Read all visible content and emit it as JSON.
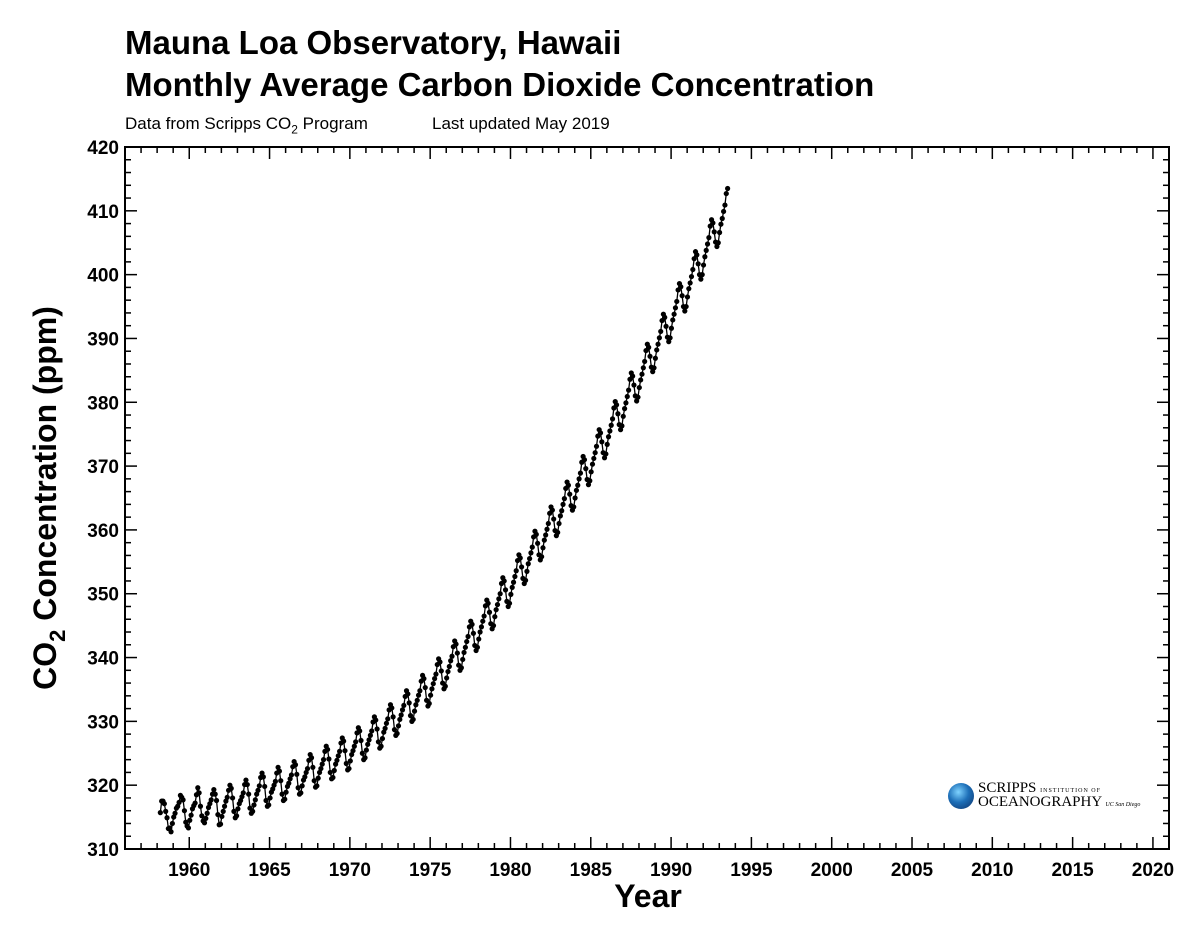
{
  "header": {
    "title_line1": "Mauna Loa Observatory, Hawaii",
    "title_line2": "Monthly Average Carbon Dioxide Concentration",
    "source_prefix": "Data from Scripps CO",
    "source_sub": "2",
    "source_suffix": " Program",
    "updated": "Last updated May 2019"
  },
  "logo": {
    "line1_main": "SCRIPPS",
    "line1_small": "INSTITUTION OF",
    "line2_main": "OCEANOGRAPHY",
    "line2_small": "UC San Diego"
  },
  "chart_data": {
    "type": "line",
    "xlabel": "Year",
    "ylabel": "CO2 Concentration (ppm)",
    "ylabel_main": "CO",
    "ylabel_sub": "2",
    "ylabel_rest": " Concentration (ppm)",
    "xlim": [
      1956,
      2021
    ],
    "ylim": [
      310,
      420
    ],
    "xticks": [
      1960,
      1965,
      1970,
      1975,
      1980,
      1985,
      1990,
      1995,
      2000,
      2005,
      2010,
      2015,
      2020
    ],
    "yticks": [
      310,
      320,
      330,
      340,
      350,
      360,
      370,
      380,
      390,
      400,
      410,
      420
    ],
    "grid": false,
    "markers": "filled-circle",
    "color": "#000000",
    "series": [
      {
        "x_start": 1958.2,
        "x_step": 0.0833,
        "monthly_ppm": [
          315.7,
          317.5,
          317.5,
          317.1,
          315.9,
          314.9,
          313.2,
          313.3,
          312.7,
          314.0,
          315.0,
          315.6,
          316.4,
          316.7,
          317.3,
          318.4,
          318.1,
          317.7,
          316.0,
          314.2,
          313.6,
          313.3,
          314.5,
          315.3,
          316.3,
          316.8,
          317.2,
          318.5,
          319.6,
          318.8,
          316.7,
          315.2,
          314.4,
          314.1,
          314.8,
          315.6,
          316.5,
          317.1,
          317.7,
          318.6,
          319.3,
          318.6,
          317.6,
          315.4,
          313.8,
          313.9,
          315.1,
          315.9,
          316.7,
          317.5,
          318.1,
          319.2,
          320.0,
          319.5,
          318.0,
          315.9,
          314.9,
          315.2,
          316.3,
          317.1,
          317.6,
          318.2,
          318.8,
          320.1,
          320.8,
          320.1,
          318.6,
          316.4,
          315.6,
          315.9,
          316.9,
          317.7,
          318.6,
          319.2,
          319.9,
          321.2,
          321.9,
          321.3,
          319.8,
          317.6,
          316.7,
          316.9,
          318.0,
          318.9,
          319.4,
          320.0,
          320.6,
          321.9,
          322.8,
          322.2,
          320.7,
          318.6,
          317.6,
          317.8,
          318.9,
          319.8,
          320.3,
          321.0,
          321.6,
          322.9,
          323.7,
          323.2,
          321.7,
          319.6,
          318.6,
          318.8,
          319.9,
          320.8,
          321.3,
          322.0,
          322.6,
          323.9,
          324.8,
          324.3,
          322.8,
          320.7,
          319.7,
          319.9,
          321.1,
          322.0,
          322.6,
          323.3,
          324.0,
          325.3,
          326.1,
          325.6,
          324.1,
          322.0,
          321.0,
          321.2,
          322.3,
          323.3,
          323.9,
          324.6,
          325.3,
          326.6,
          327.4,
          326.9,
          325.4,
          323.4,
          322.4,
          322.6,
          323.8,
          324.8,
          325.4,
          326.1,
          326.8,
          328.2,
          329.0,
          328.5,
          327.0,
          325.0,
          324.0,
          324.3,
          325.5,
          326.4,
          327.1,
          327.8,
          328.5,
          329.9,
          330.7,
          330.2,
          328.8,
          326.8,
          325.8,
          326.1,
          327.3,
          328.3,
          328.9,
          329.7,
          330.4,
          331.8,
          332.6,
          332.1,
          330.7,
          328.7,
          327.8,
          328.1,
          329.3,
          330.3,
          331.0,
          331.8,
          332.5,
          333.9,
          334.8,
          334.3,
          332.9,
          330.9,
          330.0,
          330.3,
          331.6,
          332.6,
          333.3,
          334.1,
          334.8,
          336.3,
          337.2,
          336.7,
          335.3,
          333.3,
          332.4,
          332.8,
          334.1,
          335.1,
          335.9,
          336.7,
          337.4,
          338.9,
          339.8,
          339.3,
          337.9,
          336.0,
          335.1,
          335.5,
          336.8,
          337.8,
          338.6,
          339.5,
          340.2,
          341.7,
          342.6,
          342.1,
          340.7,
          338.8,
          338.0,
          338.4,
          339.7,
          340.8,
          341.6,
          342.5,
          343.3,
          344.8,
          345.7,
          345.2,
          343.8,
          341.9,
          341.1,
          341.6,
          342.9,
          344.0,
          344.8,
          345.7,
          346.5,
          348.1,
          349.0,
          348.5,
          347.1,
          345.3,
          344.5,
          345.0,
          346.4,
          347.5,
          348.3,
          349.2,
          350.0,
          351.6,
          352.5,
          352.0,
          350.6,
          348.8,
          348.0,
          348.5,
          349.9,
          351.0,
          351.8,
          352.7,
          353.6,
          355.2,
          356.1,
          355.6,
          354.2,
          352.4,
          351.6,
          352.1,
          353.5,
          354.7,
          355.5,
          356.4,
          357.3,
          358.9,
          359.8,
          359.3,
          357.9,
          356.1,
          355.3,
          355.8,
          357.2,
          358.4,
          359.2,
          360.1,
          361.0,
          362.6,
          363.6,
          363.1,
          361.7,
          359.9,
          359.1,
          359.6,
          361.0,
          362.2,
          363.0,
          364.0,
          364.9,
          366.5,
          367.5,
          367.0,
          365.6,
          363.8,
          363.1,
          363.6,
          365.0,
          366.2,
          367.0,
          368.0,
          368.9,
          370.6,
          371.5,
          371.0,
          369.6,
          367.9,
          367.1,
          367.7,
          369.1,
          370.3,
          371.2,
          372.1,
          373.1,
          374.7,
          375.7,
          375.2,
          373.8,
          372.1,
          371.3,
          371.9,
          373.4,
          374.6,
          375.5,
          376.4,
          377.4,
          379.1,
          380.1,
          379.6,
          378.2,
          376.5,
          375.7,
          376.3,
          377.8,
          379.0,
          379.9,
          380.9,
          381.9,
          383.6,
          384.6,
          384.1,
          382.7,
          381.0,
          380.2,
          380.8,
          382.3,
          383.5,
          384.4,
          385.4,
          386.4,
          388.1,
          389.1,
          388.6,
          387.2,
          385.5,
          384.8,
          385.4,
          386.9,
          388.2,
          389.1,
          390.1,
          391.1,
          392.8,
          393.8,
          393.3,
          391.9,
          390.2,
          389.5,
          390.1,
          391.6,
          392.9,
          393.8,
          394.8,
          395.8,
          397.6,
          398.6,
          398.1,
          396.7,
          395.0,
          394.3,
          395.0,
          396.5,
          397.8,
          398.7,
          399.7,
          400.8,
          402.5,
          403.6,
          403.1,
          401.7,
          400.0,
          399.3,
          400.0,
          401.5,
          402.8,
          403.8,
          404.8,
          405.8,
          407.6,
          408.6,
          408.1,
          406.7,
          405.1,
          404.4,
          405.0,
          406.6,
          407.9,
          408.8,
          409.9,
          410.9,
          412.7,
          413.5
        ]
      }
    ]
  }
}
